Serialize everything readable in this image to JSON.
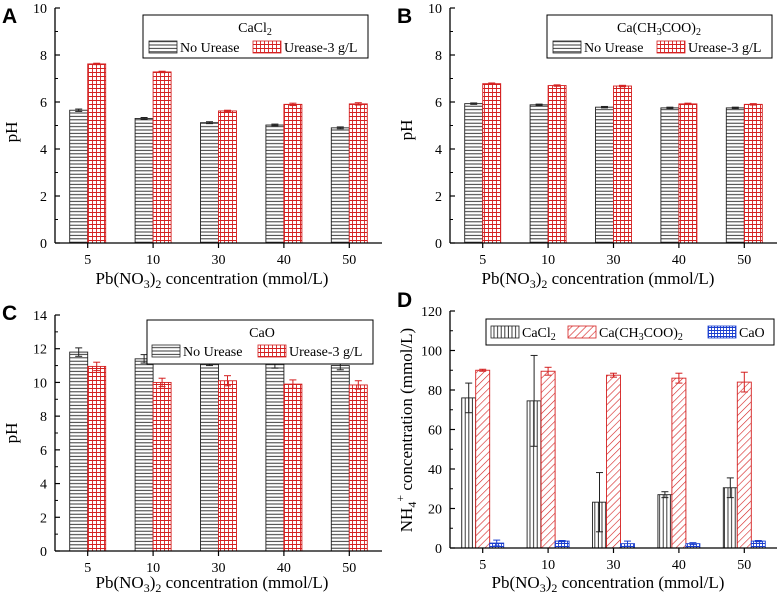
{
  "colors": {
    "no_urease_stroke": "#222222",
    "urease_stroke": "#d42020",
    "cacl2_stroke": "#222222",
    "caac_stroke": "#d42020",
    "cao_stroke": "#1a3ecf"
  },
  "chart_data": [
    {
      "panel": "A",
      "type": "bar",
      "title": "",
      "legend_title": "CaCl2",
      "legend_position": "top-right",
      "categories": [
        "5",
        "10",
        "30",
        "40",
        "50"
      ],
      "xlabel": "Pb(NO3)2 concentration (mmol/L)",
      "ylabel": "pH",
      "ylim": [
        0,
        10
      ],
      "yticks": [
        "0",
        "2",
        "4",
        "6",
        "8",
        "10"
      ],
      "series": [
        {
          "name": "No Urease",
          "pattern": "hlines",
          "color": "#222222",
          "values": [
            5.65,
            5.3,
            5.12,
            5.02,
            4.9
          ],
          "errors": [
            0.05,
            0.04,
            0.04,
            0.04,
            0.04
          ]
        },
        {
          "name": "Urease-3 g/L",
          "pattern": "grid",
          "color": "#d42020",
          "values": [
            7.62,
            7.28,
            5.62,
            5.9,
            5.92
          ],
          "errors": [
            0.03,
            0.03,
            0.03,
            0.05,
            0.05
          ]
        }
      ]
    },
    {
      "panel": "B",
      "type": "bar",
      "title": "",
      "legend_title": "Ca(CH3COO)2",
      "legend_position": "top-right",
      "categories": [
        "5",
        "10",
        "30",
        "40",
        "50"
      ],
      "xlabel": "Pb(NO3)2 concentration (mmol/L)",
      "ylabel": "pH",
      "ylim": [
        0,
        10
      ],
      "yticks": [
        "0",
        "2",
        "4",
        "6",
        "8",
        "10"
      ],
      "series": [
        {
          "name": "No Urease",
          "pattern": "hlines",
          "color": "#222222",
          "values": [
            5.93,
            5.88,
            5.78,
            5.75,
            5.75
          ],
          "errors": [
            0.03,
            0.03,
            0.03,
            0.03,
            0.03
          ]
        },
        {
          "name": "Urease-3 g/L",
          "pattern": "grid",
          "color": "#d42020",
          "values": [
            6.78,
            6.7,
            6.68,
            5.92,
            5.9
          ],
          "errors": [
            0.03,
            0.03,
            0.03,
            0.03,
            0.03
          ]
        }
      ]
    },
    {
      "panel": "C",
      "type": "bar",
      "title": "",
      "legend_title": "CaO",
      "legend_position": "top-right",
      "categories": [
        "5",
        "10",
        "30",
        "40",
        "50"
      ],
      "xlabel": "Pb(NO3)2 concentration (mmol/L)",
      "ylabel": "pH",
      "ylim": [
        0,
        14
      ],
      "yticks": [
        "0",
        "2",
        "4",
        "6",
        "8",
        "10",
        "12",
        "14"
      ],
      "series": [
        {
          "name": "No Urease",
          "pattern": "hlines",
          "color": "#222222",
          "values": [
            11.8,
            11.4,
            11.25,
            11.1,
            11.0
          ],
          "errors": [
            0.25,
            0.25,
            0.25,
            0.25,
            0.25
          ]
        },
        {
          "name": "Urease-3 g/L",
          "pattern": "grid",
          "color": "#d42020",
          "values": [
            10.95,
            10.0,
            10.1,
            9.9,
            9.85
          ],
          "errors": [
            0.25,
            0.25,
            0.3,
            0.25,
            0.25
          ]
        }
      ]
    },
    {
      "panel": "D",
      "type": "bar",
      "title": "",
      "legend_position": "top",
      "categories": [
        "5",
        "10",
        "30",
        "40",
        "50"
      ],
      "xlabel": "Pb(NO3)2 concentration (mmol/L)",
      "ylabel": "NH4+ concentration (mmol/L)",
      "ylim": [
        0,
        120
      ],
      "yticks": [
        "0",
        "20",
        "40",
        "60",
        "80",
        "100",
        "120"
      ],
      "series": [
        {
          "name": "CaCl2",
          "pattern": "vlines",
          "color": "#222222",
          "values": [
            76,
            74.5,
            23.2,
            27,
            30.5
          ],
          "errors": [
            7.5,
            23,
            15,
            1.5,
            5
          ]
        },
        {
          "name": "Ca(CH3COO)2",
          "pattern": "diag",
          "color": "#d42020",
          "values": [
            90,
            89.5,
            87.5,
            86,
            84
          ],
          "errors": [
            0.5,
            2,
            1,
            2.5,
            5
          ]
        },
        {
          "name": "CaO",
          "pattern": "grid-blue",
          "color": "#1a3ecf",
          "values": [
            2.5,
            3.5,
            2.2,
            2.2,
            3.5
          ],
          "errors": [
            1.5,
            0.3,
            1.3,
            0.5,
            0.3
          ]
        }
      ]
    }
  ]
}
